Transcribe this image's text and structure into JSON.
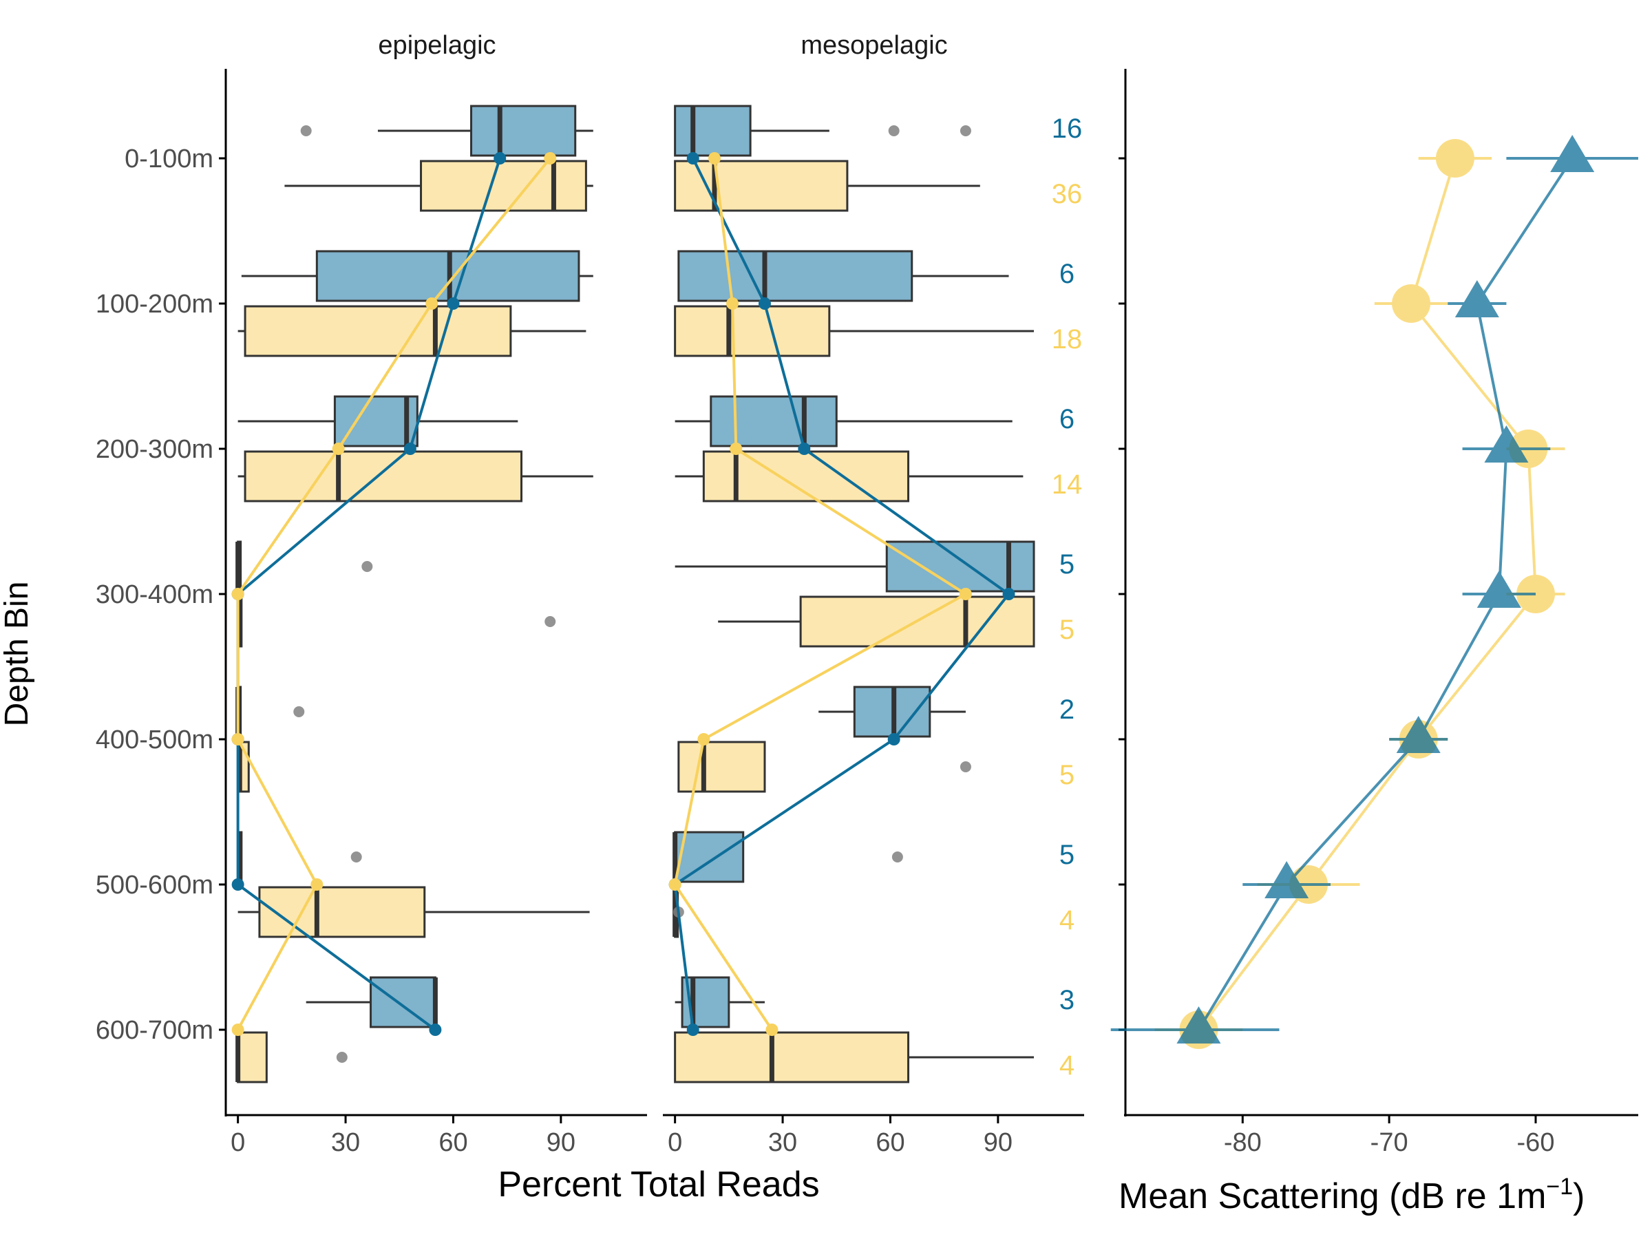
{
  "colors": {
    "series_blue": "#0e6e99",
    "series_blue_box": "#80b3cc",
    "series_yellow": "#f8d25e",
    "series_yellow_box": "#fde7b0",
    "box_outline": "#333333",
    "outlier": "#808080",
    "axis": "#000000",
    "tick_label": "#4d4d4d"
  },
  "chart_data": [
    {
      "type": "box",
      "panel": "epipelagic",
      "strip_label": "epipelagic",
      "xlim": [
        -3,
        114
      ],
      "x_ticks": [
        0,
        30,
        60,
        90
      ],
      "x_tick_labels": [
        "0",
        "30",
        "60",
        "90"
      ],
      "categories": [
        "0-100m",
        "100-200m",
        "200-300m",
        "300-400m",
        "400-500m",
        "500-600m",
        "600-700m"
      ],
      "series": [
        {
          "color": "blue",
          "boxes": [
            {
              "min": 39,
              "q1": 65,
              "median": 73,
              "q3": 94,
              "max": 99,
              "outliers": [
                19
              ]
            },
            {
              "min": 1,
              "q1": 22,
              "median": 59,
              "q3": 95,
              "max": 99,
              "outliers": []
            },
            {
              "min": 0,
              "q1": 27,
              "median": 47,
              "q3": 50,
              "max": 78,
              "outliers": []
            },
            {
              "min": 0,
              "q1": 0,
              "median": 0,
              "q3": 0,
              "max": 0,
              "outliers": [
                36
              ]
            },
            {
              "min": 0,
              "q1": 0,
              "median": 0,
              "q3": 0.5,
              "max": 1,
              "outliers": [
                17
              ]
            },
            {
              "min": 0,
              "q1": 0,
              "median": 0.5,
              "q3": 1,
              "max": 1,
              "outliers": [
                33
              ]
            },
            {
              "min": 19,
              "q1": 37,
              "median": 55,
              "q3": 55,
              "max": 55,
              "outliers": []
            }
          ],
          "trend": [
            73,
            60,
            48,
            0,
            0,
            0,
            55
          ]
        },
        {
          "color": "yellow",
          "boxes": [
            {
              "min": 13,
              "q1": 51,
              "median": 88,
              "q3": 97,
              "max": 99,
              "outliers": []
            },
            {
              "min": 0,
              "q1": 2,
              "median": 55,
              "q3": 76,
              "max": 97,
              "outliers": []
            },
            {
              "min": 0,
              "q1": 2,
              "median": 28,
              "q3": 79,
              "max": 99,
              "outliers": []
            },
            {
              "min": 0,
              "q1": 0,
              "median": 0.5,
              "q3": 1,
              "max": 1,
              "outliers": [
                87
              ]
            },
            {
              "min": 0,
              "q1": 0,
              "median": 0.5,
              "q3": 3,
              "max": 3,
              "outliers": []
            },
            {
              "min": 0,
              "q1": 6,
              "median": 22,
              "q3": 52,
              "max": 98,
              "outliers": []
            },
            {
              "min": 0,
              "q1": 0,
              "median": 0,
              "q3": 8,
              "max": 8,
              "outliers": [
                29
              ]
            }
          ],
          "trend": [
            87,
            54,
            28,
            0,
            0,
            22,
            0
          ]
        }
      ]
    },
    {
      "type": "box",
      "panel": "mesopelagic",
      "strip_label": "mesopelagic",
      "xlim": [
        -3,
        114
      ],
      "x_ticks": [
        0,
        30,
        60,
        90
      ],
      "x_tick_labels": [
        "0",
        "30",
        "60",
        "90"
      ],
      "categories": [
        "0-100m",
        "100-200m",
        "200-300m",
        "300-400m",
        "400-500m",
        "500-600m",
        "600-700m"
      ],
      "series": [
        {
          "color": "blue",
          "boxes": [
            {
              "min": 0,
              "q1": 0,
              "median": 5,
              "q3": 21,
              "max": 43,
              "outliers": [
                61,
                81
              ]
            },
            {
              "min": 1,
              "q1": 1,
              "median": 25,
              "q3": 66,
              "max": 93,
              "outliers": []
            },
            {
              "min": 0,
              "q1": 10,
              "median": 36,
              "q3": 45,
              "max": 94,
              "outliers": []
            },
            {
              "min": 0,
              "q1": 59,
              "median": 93,
              "q3": 100,
              "max": 100,
              "outliers": []
            },
            {
              "min": 40,
              "q1": 50,
              "median": 61,
              "q3": 71,
              "max": 81,
              "outliers": []
            },
            {
              "min": 0,
              "q1": 0,
              "median": 0,
              "q3": 19,
              "max": 19,
              "outliers": [
                62
              ]
            },
            {
              "min": 0,
              "q1": 2,
              "median": 5,
              "q3": 15,
              "max": 25,
              "outliers": []
            }
          ],
          "trend": [
            5,
            25,
            36,
            93,
            61,
            0,
            5
          ]
        },
        {
          "color": "yellow",
          "boxes": [
            {
              "min": 0,
              "q1": 0,
              "median": 11,
              "q3": 48,
              "max": 85,
              "outliers": []
            },
            {
              "min": 0,
              "q1": 0,
              "median": 15,
              "q3": 43,
              "max": 100,
              "outliers": []
            },
            {
              "min": 0,
              "q1": 8,
              "median": 17,
              "q3": 65,
              "max": 97,
              "outliers": []
            },
            {
              "min": 12,
              "q1": 35,
              "median": 81,
              "q3": 100,
              "max": 100,
              "outliers": []
            },
            {
              "min": 1,
              "q1": 1,
              "median": 8,
              "q3": 25,
              "max": 25,
              "outliers": [
                81
              ]
            },
            {
              "min": 0,
              "q1": 0,
              "median": 0,
              "q3": 0.5,
              "max": 1,
              "outliers": [
                1
              ]
            },
            {
              "min": 0,
              "q1": 0,
              "median": 27,
              "q3": 65,
              "max": 100,
              "outliers": []
            }
          ],
          "trend": [
            11,
            16,
            17,
            81,
            8,
            0,
            27
          ]
        }
      ]
    },
    {
      "type": "scatter",
      "panel": "scattering",
      "xlim": [
        -88,
        -53
      ],
      "x_ticks": [
        -80,
        -70,
        -60
      ],
      "x_tick_labels": [
        "-80",
        "-70",
        "-60"
      ],
      "categories": [
        "0-100m",
        "100-200m",
        "200-300m",
        "300-400m",
        "400-500m",
        "500-600m",
        "600-700m"
      ],
      "series": [
        {
          "color": "yellow",
          "marker": "circle",
          "points": [
            {
              "mean": -65.5,
              "low": -68,
              "high": -63
            },
            {
              "mean": -68.5,
              "low": -71,
              "high": -66
            },
            {
              "mean": -60.5,
              "low": -62,
              "high": -58
            },
            {
              "mean": -60,
              "low": -62,
              "high": -58
            },
            {
              "mean": -68,
              "low": -70,
              "high": -66
            },
            {
              "mean": -75.5,
              "low": -79,
              "high": -72
            },
            {
              "mean": -83,
              "low": -86,
              "high": -80
            }
          ]
        },
        {
          "color": "blue",
          "marker": "triangle",
          "points": [
            {
              "mean": -57.5,
              "low": -62,
              "high": -53
            },
            {
              "mean": -64,
              "low": -66,
              "high": -62
            },
            {
              "mean": -62,
              "low": -65,
              "high": -59
            },
            {
              "mean": -62.5,
              "low": -65,
              "high": -60
            },
            {
              "mean": -68,
              "low": -70,
              "high": -66
            },
            {
              "mean": -77,
              "low": -80,
              "high": -74
            },
            {
              "mean": -83,
              "low": -89,
              "high": -77.5
            }
          ]
        }
      ]
    }
  ],
  "counts": {
    "blue": [
      "16",
      "6",
      "6",
      "5",
      "2",
      "5",
      "3"
    ],
    "yellow": [
      "36",
      "18",
      "14",
      "5",
      "5",
      "4",
      "4"
    ]
  },
  "axes": {
    "y_title": "Depth Bin",
    "x_title_left": "Percent Total Reads",
    "x_title_right_main": "Mean Scattering  (dB re 1m",
    "x_title_right_sup": "−1",
    "x_title_right_close": ")"
  }
}
